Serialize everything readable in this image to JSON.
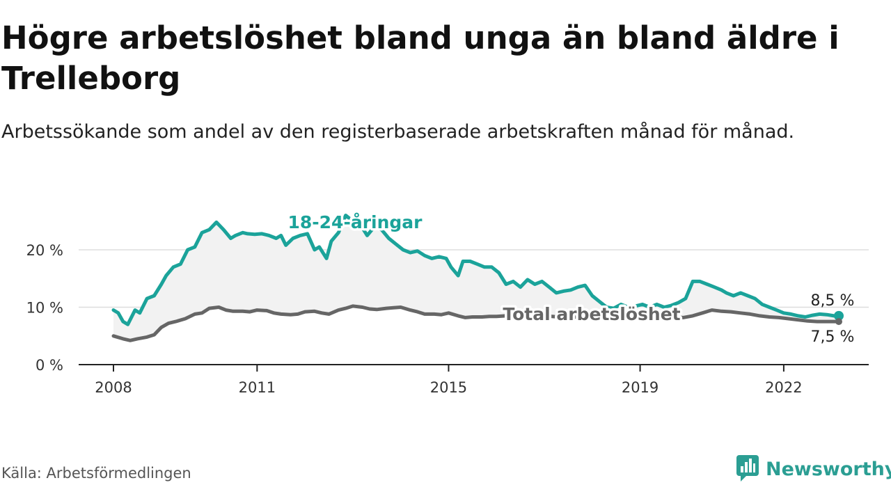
{
  "title": "Högre arbetslöshet bland unga än bland äldre i Trelleborg",
  "subtitle": "Arbetssökande som andel av den registerbaserade arbetskraften månad för månad.",
  "source": "Källa: Arbetsförmedlingen",
  "brand": "Newsworthy",
  "colors": {
    "youth": "#1ba39a",
    "total": "#666666",
    "band": "#f2f2f2",
    "grid": "#dddddd",
    "brand": "#2b9e93"
  },
  "chart_data": {
    "type": "line",
    "title": "Högre arbetslöshet bland unga än bland äldre i Trelleborg",
    "xlabel": "",
    "ylabel": "",
    "xlim": [
      2008.0,
      2023.8
    ],
    "ylim": [
      0,
      27
    ],
    "x_ticks": [
      2008,
      2011,
      2015,
      2019,
      2022
    ],
    "x_tick_labels": [
      "2008",
      "2011",
      "2015",
      "2019",
      "2022"
    ],
    "y_ticks": [
      0,
      10,
      20
    ],
    "y_tick_labels": [
      "0 %",
      "10 %",
      "20 %"
    ],
    "grid": true,
    "series": [
      {
        "name": "18-24-åringar",
        "label": "18-24-åringar",
        "end_label": "8,5 %",
        "x": [
          2008.0,
          2008.1,
          2008.2,
          2008.3,
          2008.45,
          2008.55,
          2008.7,
          2008.85,
          2009.0,
          2009.1,
          2009.25,
          2009.4,
          2009.55,
          2009.7,
          2009.85,
          2010.0,
          2010.15,
          2010.3,
          2010.45,
          2010.55,
          2010.7,
          2010.8,
          2010.95,
          2011.1,
          2011.25,
          2011.4,
          2011.5,
          2011.6,
          2011.75,
          2011.9,
          2012.05,
          2012.2,
          2012.3,
          2012.45,
          2012.55,
          2012.7,
          2012.85,
          2013.0,
          2013.15,
          2013.3,
          2013.45,
          2013.6,
          2013.75,
          2013.9,
          2014.05,
          2014.2,
          2014.35,
          2014.5,
          2014.65,
          2014.8,
          2014.95,
          2015.05,
          2015.2,
          2015.3,
          2015.45,
          2015.6,
          2015.75,
          2015.9,
          2016.05,
          2016.2,
          2016.35,
          2016.5,
          2016.65,
          2016.8,
          2016.95,
          2017.1,
          2017.25,
          2017.4,
          2017.55,
          2017.7,
          2017.85,
          2018.0,
          2018.15,
          2018.3,
          2018.45,
          2018.6,
          2018.75,
          2018.9,
          2019.05,
          2019.2,
          2019.35,
          2019.5,
          2019.65,
          2019.8,
          2019.95,
          2020.1,
          2020.25,
          2020.4,
          2020.55,
          2020.7,
          2020.8,
          2020.95,
          2021.1,
          2021.25,
          2021.4,
          2021.55,
          2021.7,
          2021.85,
          2022.0,
          2022.15,
          2022.3,
          2022.45,
          2022.6,
          2022.75,
          2022.9,
          2023.05,
          2023.15
        ],
        "values": [
          9.5,
          9.0,
          7.5,
          7.0,
          9.5,
          9.0,
          11.5,
          12.0,
          14.0,
          15.5,
          17.0,
          17.5,
          20.0,
          20.5,
          23.0,
          23.5,
          24.8,
          23.5,
          22.0,
          22.5,
          23.0,
          22.8,
          22.7,
          22.8,
          22.5,
          22.0,
          22.5,
          20.8,
          22.0,
          22.5,
          22.8,
          20.0,
          20.5,
          18.5,
          21.5,
          23.0,
          26.0,
          25.0,
          24.5,
          22.5,
          24.0,
          23.5,
          22.0,
          21.0,
          20.0,
          19.5,
          19.8,
          19.0,
          18.5,
          18.8,
          18.5,
          17.0,
          15.5,
          18.0,
          18.0,
          17.5,
          17.0,
          17.0,
          16.0,
          14.0,
          14.5,
          13.5,
          14.8,
          14.0,
          14.5,
          13.5,
          12.5,
          12.8,
          13.0,
          13.5,
          13.8,
          12.0,
          11.0,
          10.0,
          9.8,
          10.5,
          10.0,
          10.2,
          10.5,
          10.0,
          10.5,
          10.0,
          10.3,
          10.8,
          11.5,
          14.5,
          14.5,
          14.0,
          13.5,
          13.0,
          12.5,
          12.0,
          12.5,
          12.0,
          11.5,
          10.5,
          10.0,
          9.5,
          9.0,
          8.8,
          8.5,
          8.3,
          8.6,
          8.8,
          8.7,
          8.5,
          8.5
        ]
      },
      {
        "name": "Total arbetslöshet",
        "label": "Total arbetslöshet",
        "end_label": "7,5 %",
        "x": [
          2008.0,
          2008.2,
          2008.35,
          2008.5,
          2008.7,
          2008.85,
          2009.0,
          2009.15,
          2009.3,
          2009.5,
          2009.7,
          2009.85,
          2010.0,
          2010.2,
          2010.35,
          2010.5,
          2010.7,
          2010.85,
          2011.0,
          2011.2,
          2011.35,
          2011.5,
          2011.7,
          2011.85,
          2012.0,
          2012.2,
          2012.35,
          2012.5,
          2012.7,
          2012.85,
          2013.0,
          2013.2,
          2013.35,
          2013.5,
          2013.7,
          2013.85,
          2014.0,
          2014.2,
          2014.35,
          2014.5,
          2014.7,
          2014.85,
          2015.0,
          2015.2,
          2015.35,
          2015.5,
          2015.7,
          2015.85,
          2016.0,
          2016.2,
          2016.5,
          2016.8,
          2017.0,
          2017.3,
          2017.6,
          2017.9,
          2018.2,
          2018.5,
          2018.8,
          2019.0,
          2019.3,
          2019.6,
          2019.9,
          2020.1,
          2020.3,
          2020.5,
          2020.7,
          2020.9,
          2021.1,
          2021.3,
          2021.5,
          2021.7,
          2021.9,
          2022.1,
          2022.3,
          2022.5,
          2022.7,
          2022.9,
          2023.15
        ],
        "values": [
          5.0,
          4.5,
          4.2,
          4.5,
          4.8,
          5.2,
          6.5,
          7.2,
          7.5,
          8.0,
          8.8,
          9.0,
          9.8,
          10.0,
          9.5,
          9.3,
          9.3,
          9.2,
          9.5,
          9.4,
          9.0,
          8.8,
          8.7,
          8.8,
          9.2,
          9.3,
          9.0,
          8.8,
          9.5,
          9.8,
          10.2,
          10.0,
          9.7,
          9.6,
          9.8,
          9.9,
          10.0,
          9.5,
          9.2,
          8.8,
          8.8,
          8.7,
          9.0,
          8.5,
          8.2,
          8.3,
          8.3,
          8.4,
          8.4,
          8.5,
          8.5,
          8.4,
          8.5,
          8.3,
          8.3,
          8.2,
          8.4,
          8.5,
          8.4,
          8.3,
          8.3,
          8.3,
          8.2,
          8.5,
          9.0,
          9.5,
          9.3,
          9.2,
          9.0,
          8.8,
          8.5,
          8.3,
          8.2,
          8.0,
          7.8,
          7.6,
          7.5,
          7.5,
          7.5
        ]
      }
    ]
  }
}
